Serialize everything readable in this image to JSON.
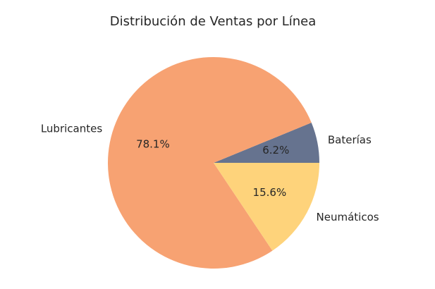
{
  "chart_data": {
    "type": "pie",
    "title": "Distribución de Ventas por Línea",
    "slices": [
      {
        "label": "Baterías",
        "value": 6.2,
        "pct_label": "6.2%",
        "color": "#66738f"
      },
      {
        "label": "Lubricantes",
        "value": 78.1,
        "pct_label": "78.1%",
        "color": "#f7a272"
      },
      {
        "label": "Neumáticos",
        "value": 15.6,
        "pct_label": "15.6%",
        "color": "#fed37b"
      }
    ],
    "legend": "none"
  }
}
